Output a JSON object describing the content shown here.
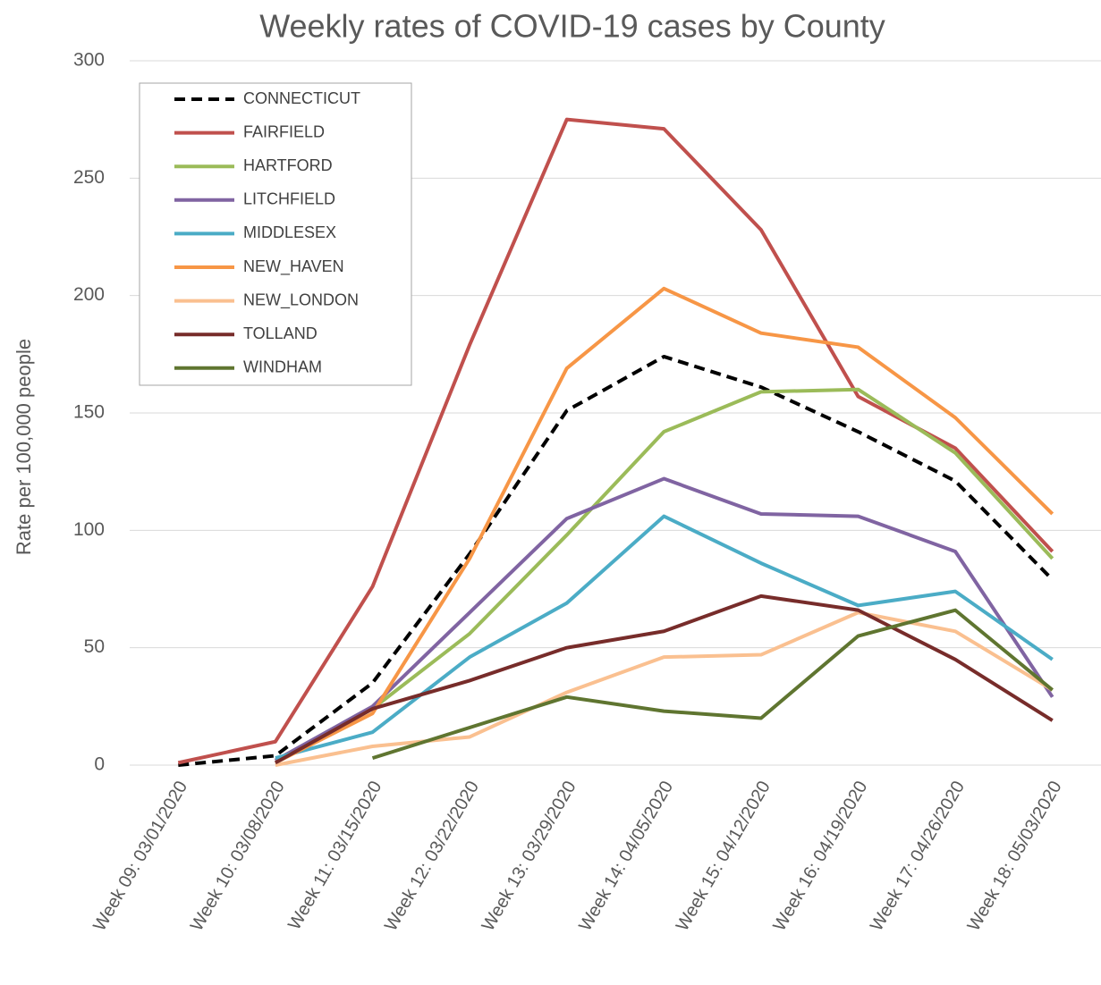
{
  "chart_data": {
    "type": "line",
    "title": "Weekly rates of COVID-19 cases by County",
    "y_label": "Rate per 100,000 people",
    "categories": [
      "Week 09: 03/01/2020",
      "Week 10: 03/08/2020",
      "Week 11: 03/15/2020",
      "Week 12: 03/22/2020",
      "Week 13: 03/29/2020",
      "Week 14: 04/05/2020",
      "Week 15: 04/12/2020",
      "Week 16: 04/19/2020",
      "Week 17: 04/26/2020",
      "Week 18: 05/03/2020"
    ],
    "series": [
      {
        "name": "CONNECTICUT",
        "color": "#000000",
        "dashed": true,
        "values": [
          0,
          4,
          35,
          90,
          151,
          174,
          161,
          142,
          121,
          79
        ]
      },
      {
        "name": "FAIRFIELD",
        "color": "#c0504d",
        "values": [
          1,
          10,
          76,
          179,
          275,
          271,
          228,
          157,
          135,
          91
        ]
      },
      {
        "name": "HARTFORD",
        "color": "#9bbb59",
        "values": [
          null,
          2,
          24,
          56,
          98,
          142,
          159,
          160,
          133,
          88
        ]
      },
      {
        "name": "LITCHFIELD",
        "color": "#8064a2",
        "values": [
          null,
          2,
          25,
          65,
          105,
          122,
          107,
          106,
          91,
          29
        ]
      },
      {
        "name": "MIDDLESEX",
        "color": "#4bacc6",
        "values": [
          null,
          3,
          14,
          46,
          69,
          106,
          86,
          68,
          74,
          45
        ]
      },
      {
        "name": "NEW_HAVEN",
        "color": "#f79646",
        "values": [
          null,
          1,
          22,
          88,
          169,
          203,
          184,
          178,
          148,
          107
        ]
      },
      {
        "name": "NEW_LONDON",
        "color": "#fac090",
        "values": [
          null,
          0,
          8,
          12,
          31,
          46,
          47,
          65,
          57,
          32
        ]
      },
      {
        "name": "TOLLAND",
        "color": "#772c2a",
        "values": [
          null,
          1,
          24,
          36,
          50,
          57,
          72,
          66,
          45,
          19
        ]
      },
      {
        "name": "WINDHAM",
        "color": "#5f7530",
        "values": [
          null,
          null,
          3,
          16,
          29,
          23,
          20,
          55,
          66,
          32
        ]
      }
    ],
    "ylim": [
      0,
      300
    ],
    "yticks": [
      0,
      50,
      100,
      150,
      200,
      250,
      300
    ],
    "grid": true,
    "legend": "upper left"
  }
}
